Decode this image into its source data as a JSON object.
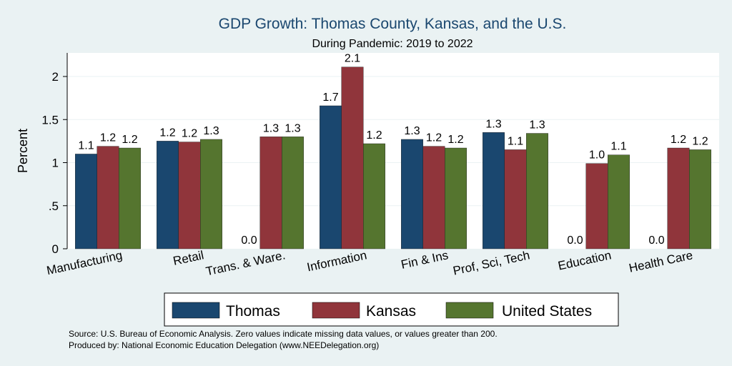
{
  "chart_data": {
    "type": "bar",
    "title": "GDP Growth: Thomas County, Kansas, and the U.S.",
    "subtitle": "During Pandemic: 2019 to 2022",
    "ylabel": "Percent",
    "ylim": [
      0,
      2.3
    ],
    "yticks": [
      0,
      0.5,
      1,
      1.5,
      2
    ],
    "ytick_labels": [
      "0",
      ".5",
      "1",
      "1.5",
      "2"
    ],
    "grid": true,
    "legend_position": "bottom",
    "categories": [
      "Manufacturing",
      "Retail",
      "Trans. & Ware.",
      "Information",
      "Fin & Ins",
      "Prof, Sci, Tech",
      "Education",
      "Health Care"
    ],
    "series": [
      {
        "name": "Thomas",
        "color": "#1a476f",
        "values": [
          1.1,
          1.25,
          0.0,
          1.66,
          1.27,
          1.35,
          0.0,
          0.0
        ],
        "labels": [
          "1.1",
          "1.2",
          "0.0",
          "1.7",
          "1.3",
          "1.3",
          "0.0",
          "0.0"
        ]
      },
      {
        "name": "Kansas",
        "color": "#90353b",
        "values": [
          1.19,
          1.24,
          1.3,
          2.11,
          1.19,
          1.15,
          0.99,
          1.17
        ],
        "labels": [
          "1.2",
          "1.2",
          "1.3",
          "2.1",
          "1.2",
          "1.1",
          "1.0",
          "1.2"
        ]
      },
      {
        "name": "United States",
        "color": "#55752f",
        "values": [
          1.17,
          1.27,
          1.3,
          1.22,
          1.17,
          1.34,
          1.09,
          1.15
        ],
        "labels": [
          "1.2",
          "1.3",
          "1.3",
          "1.2",
          "1.2",
          "1.3",
          "1.1",
          "1.2"
        ]
      }
    ],
    "notes": [
      "Source: U.S. Bureau of Economic Analysis. Zero values indicate missing data values, or values greater than 200.",
      "Produced by: National Economic Education Delegation (www.NEEDelegation.org)"
    ]
  }
}
